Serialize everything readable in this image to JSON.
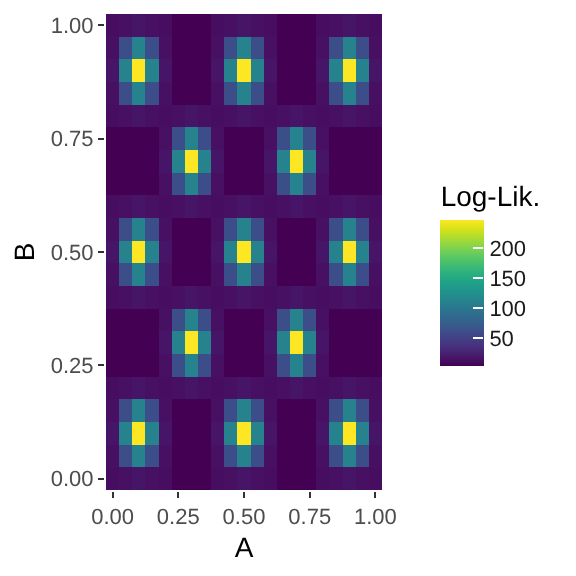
{
  "chart_data": {
    "type": "heatmap",
    "xlabel": "A",
    "ylabel": "B",
    "clabel": "Log-Lik.",
    "cells": [
      [
        10,
        12,
        15,
        12,
        10,
        2,
        2,
        2,
        10,
        12,
        15,
        12,
        10,
        2,
        2,
        2,
        10,
        12,
        15,
        12,
        10
      ],
      [
        12,
        60,
        110,
        60,
        12,
        2,
        2,
        2,
        12,
        60,
        110,
        60,
        12,
        2,
        2,
        2,
        12,
        60,
        110,
        60,
        12
      ],
      [
        15,
        110,
        245,
        110,
        15,
        2,
        2,
        2,
        15,
        110,
        245,
        110,
        15,
        2,
        2,
        2,
        15,
        110,
        245,
        110,
        15
      ],
      [
        12,
        60,
        110,
        60,
        12,
        2,
        2,
        2,
        12,
        60,
        110,
        60,
        12,
        2,
        2,
        2,
        12,
        60,
        110,
        60,
        12
      ],
      [
        10,
        12,
        15,
        12,
        10,
        12,
        15,
        12,
        10,
        12,
        15,
        12,
        10,
        12,
        15,
        12,
        10,
        12,
        15,
        12,
        10
      ],
      [
        2,
        2,
        2,
        2,
        12,
        60,
        110,
        60,
        12,
        2,
        2,
        2,
        12,
        60,
        110,
        60,
        12,
        2,
        2,
        2,
        2
      ],
      [
        2,
        2,
        2,
        2,
        15,
        110,
        245,
        110,
        15,
        2,
        2,
        2,
        15,
        110,
        245,
        110,
        15,
        2,
        2,
        2,
        2
      ],
      [
        2,
        2,
        2,
        2,
        12,
        60,
        110,
        60,
        12,
        2,
        2,
        2,
        12,
        60,
        110,
        60,
        12,
        2,
        2,
        2,
        2
      ],
      [
        10,
        12,
        15,
        12,
        10,
        12,
        15,
        12,
        10,
        12,
        15,
        12,
        10,
        12,
        15,
        12,
        10,
        12,
        15,
        12,
        10
      ],
      [
        12,
        60,
        110,
        60,
        12,
        2,
        2,
        2,
        12,
        60,
        110,
        60,
        12,
        2,
        2,
        2,
        12,
        60,
        110,
        60,
        12
      ],
      [
        15,
        110,
        245,
        110,
        15,
        2,
        2,
        2,
        15,
        110,
        245,
        110,
        15,
        2,
        2,
        2,
        15,
        110,
        245,
        110,
        15
      ],
      [
        12,
        60,
        110,
        60,
        12,
        2,
        2,
        2,
        12,
        60,
        110,
        60,
        12,
        2,
        2,
        2,
        12,
        60,
        110,
        60,
        12
      ],
      [
        10,
        12,
        15,
        12,
        10,
        12,
        15,
        12,
        10,
        12,
        15,
        12,
        10,
        12,
        15,
        12,
        10,
        12,
        15,
        12,
        10
      ],
      [
        2,
        2,
        2,
        2,
        12,
        60,
        110,
        60,
        12,
        2,
        2,
        2,
        12,
        60,
        110,
        60,
        12,
        2,
        2,
        2,
        2
      ],
      [
        2,
        2,
        2,
        2,
        15,
        110,
        245,
        110,
        15,
        2,
        2,
        2,
        15,
        110,
        245,
        110,
        15,
        2,
        2,
        2,
        2
      ],
      [
        2,
        2,
        2,
        2,
        12,
        60,
        110,
        60,
        12,
        2,
        2,
        2,
        12,
        60,
        110,
        60,
        12,
        2,
        2,
        2,
        2
      ],
      [
        10,
        12,
        15,
        12,
        10,
        12,
        15,
        12,
        10,
        12,
        15,
        12,
        10,
        12,
        15,
        12,
        10,
        12,
        15,
        12,
        10
      ],
      [
        12,
        60,
        110,
        60,
        12,
        2,
        2,
        2,
        12,
        60,
        110,
        60,
        12,
        2,
        2,
        2,
        12,
        60,
        110,
        60,
        12
      ],
      [
        15,
        110,
        245,
        110,
        15,
        2,
        2,
        2,
        15,
        110,
        245,
        110,
        15,
        2,
        2,
        2,
        15,
        110,
        245,
        110,
        15
      ],
      [
        12,
        60,
        110,
        60,
        12,
        2,
        2,
        2,
        12,
        60,
        110,
        60,
        12,
        2,
        2,
        2,
        12,
        60,
        110,
        60,
        12
      ],
      [
        10,
        12,
        15,
        12,
        10,
        2,
        2,
        2,
        10,
        12,
        15,
        12,
        10,
        2,
        2,
        2,
        10,
        12,
        15,
        12,
        10
      ]
    ],
    "clim": [
      2,
      245
    ],
    "cticks": [
      50,
      100,
      150,
      200
    ],
    "xlim": [
      -0.025,
      1.025
    ],
    "ylim": [
      -0.025,
      1.025
    ],
    "xticks": [
      {
        "value": 0,
        "label": "0.00"
      },
      {
        "value": 0.25,
        "label": "0.25"
      },
      {
        "value": 0.5,
        "label": "0.50"
      },
      {
        "value": 0.75,
        "label": "0.75"
      },
      {
        "value": 1,
        "label": "1.00"
      }
    ],
    "yticks": [
      {
        "value": 0,
        "label": "0.00"
      },
      {
        "value": 0.25,
        "label": "0.25"
      },
      {
        "value": 0.5,
        "label": "0.50"
      },
      {
        "value": 0.75,
        "label": "0.75"
      },
      {
        "value": 1,
        "label": "1.00"
      }
    ]
  }
}
